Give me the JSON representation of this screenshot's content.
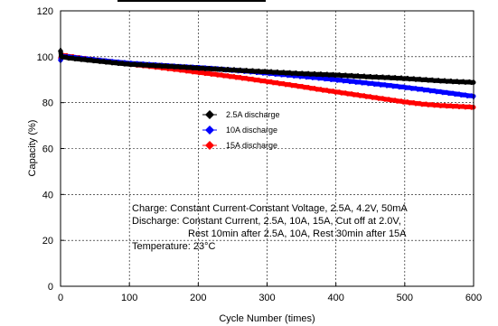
{
  "chart_data": {
    "type": "scatter",
    "title": "",
    "xlabel": "Cycle Number (times)",
    "ylabel": "Capacity (%)",
    "xlim": [
      0,
      600
    ],
    "ylim": [
      0,
      120
    ],
    "xticks": [
      0,
      100,
      200,
      300,
      400,
      500,
      600
    ],
    "yticks": [
      0,
      20,
      40,
      60,
      80,
      100,
      120
    ],
    "grid": "dashed",
    "legend_position": "center",
    "series": [
      {
        "name": "2.5A discharge",
        "color": "#000000",
        "marker": "diamond",
        "x": [
          0,
          1,
          2,
          5,
          10,
          25,
          50,
          75,
          100,
          125,
          150,
          175,
          200,
          225,
          250,
          275,
          300,
          325,
          350,
          375,
          400,
          425,
          450,
          475,
          500,
          525,
          550,
          575,
          600
        ],
        "y": [
          102.5,
          100.2,
          100.0,
          99.8,
          99.5,
          99.0,
          98.2,
          97.4,
          96.7,
          96.3,
          95.9,
          95.5,
          95.0,
          94.6,
          94.2,
          93.8,
          93.4,
          93.0,
          92.6,
          92.3,
          92.0,
          91.6,
          91.2,
          90.9,
          90.5,
          90.0,
          89.5,
          89.1,
          88.8
        ]
      },
      {
        "name": "10A discharge",
        "color": "#0000ff",
        "marker": "diamond",
        "x": [
          0,
          1,
          2,
          5,
          10,
          25,
          50,
          75,
          100,
          125,
          150,
          175,
          200,
          225,
          250,
          275,
          300,
          325,
          350,
          375,
          400,
          425,
          450,
          475,
          500,
          525,
          550,
          575,
          600
        ],
        "y": [
          98.5,
          99.5,
          100.0,
          100.2,
          100.0,
          99.5,
          98.7,
          97.9,
          97.2,
          96.7,
          96.2,
          95.7,
          95.3,
          94.8,
          94.2,
          93.6,
          92.9,
          92.2,
          91.5,
          90.8,
          90.0,
          89.2,
          88.4,
          87.6,
          86.7,
          85.8,
          84.8,
          83.8,
          82.8
        ]
      },
      {
        "name": "15A discharge",
        "color": "#ff0000",
        "marker": "diamond",
        "x": [
          0,
          1,
          2,
          5,
          10,
          25,
          50,
          75,
          100,
          125,
          150,
          175,
          200,
          225,
          250,
          275,
          300,
          325,
          350,
          375,
          400,
          425,
          450,
          475,
          500,
          525,
          550,
          575,
          600
        ],
        "y": [
          99.5,
          100.5,
          100.8,
          100.6,
          100.3,
          99.6,
          98.6,
          97.7,
          96.8,
          96.0,
          95.1,
          94.2,
          93.2,
          92.3,
          91.3,
          90.3,
          89.2,
          88.1,
          87.0,
          85.8,
          84.7,
          83.6,
          82.5,
          81.4,
          80.3,
          79.4,
          78.8,
          78.4,
          78.0
        ]
      }
    ],
    "annotations": [
      "Charge: Constant Current-Constant Voltage, 2.5A, 4.2V, 50mA",
      "Discharge: Constant Current, 2.5A, 10A, 15A, Cut off at 2.0V,",
      "Rest 10min after 2.5A, 10A, Rest 30min after 15A",
      "Temperature: 23°C"
    ]
  }
}
